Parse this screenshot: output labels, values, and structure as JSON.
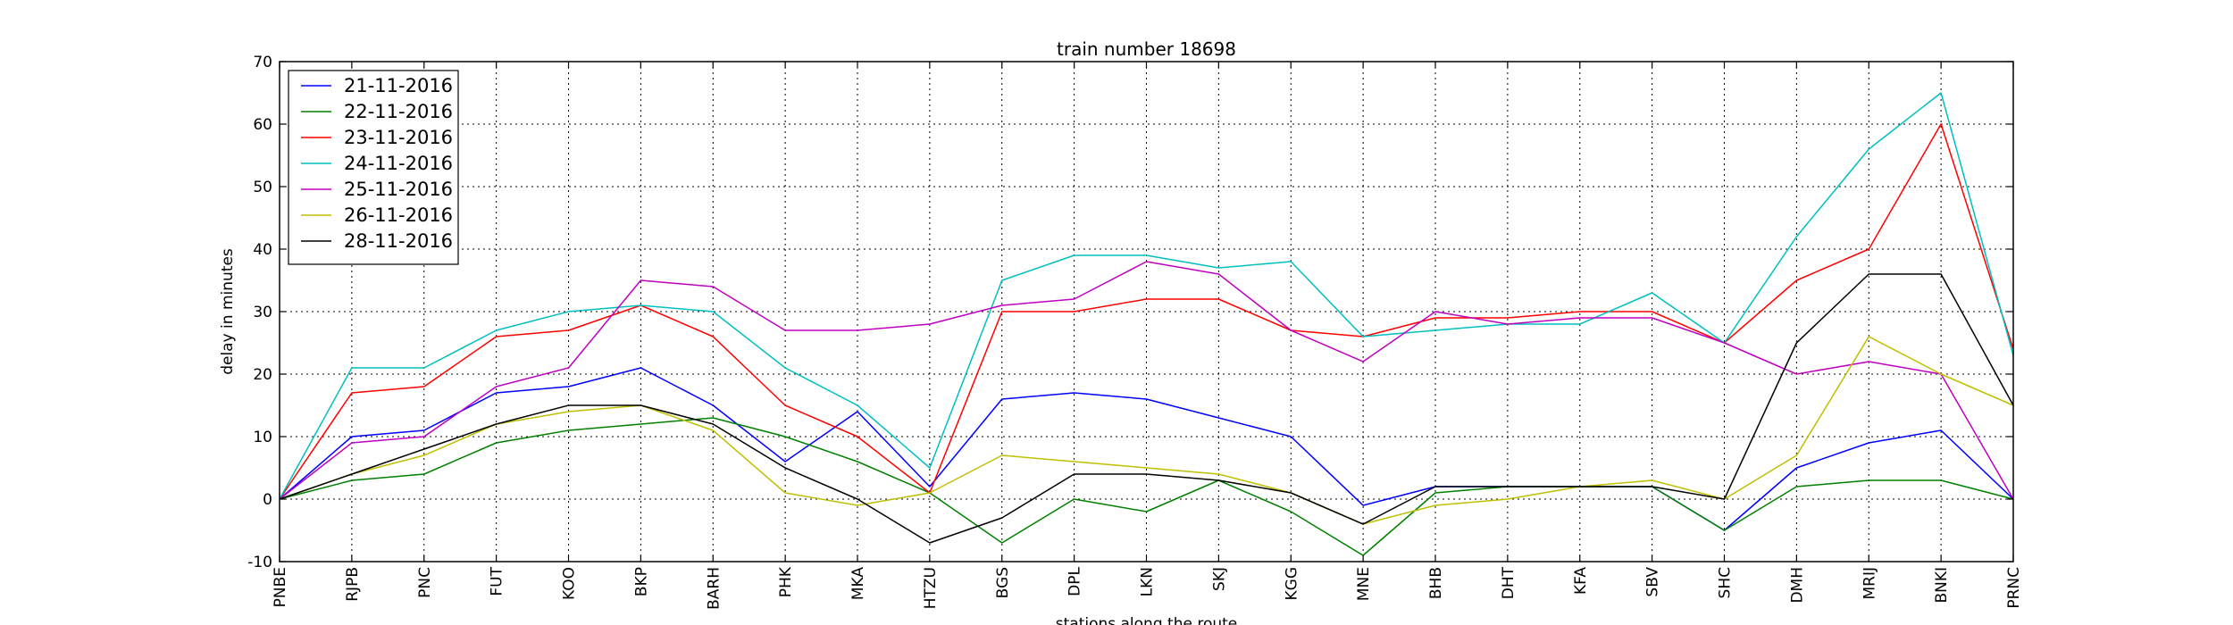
{
  "chart_data": {
    "type": "line",
    "title": "train number 18698",
    "xlabel": "stations along the route",
    "ylabel": "delay in minutes",
    "ylim": [
      -10,
      70
    ],
    "yticks": [
      -10,
      0,
      10,
      20,
      30,
      40,
      50,
      60,
      70
    ],
    "grid": true,
    "legend": "top-left",
    "categories": [
      "PNBE",
      "RJPB",
      "PNC",
      "FUT",
      "KOO",
      "BKP",
      "BARH",
      "PHK",
      "MKA",
      "HTZU",
      "BGS",
      "DPL",
      "LKN",
      "SKJ",
      "KGG",
      "MNE",
      "BHB",
      "DHT",
      "KFA",
      "SBV",
      "SHC",
      "DMH",
      "MRIJ",
      "BNKI",
      "PRNC"
    ],
    "series": [
      {
        "name": "21-11-2016",
        "color": "#0000ff",
        "values": [
          0,
          10,
          11,
          17,
          18,
          21,
          15,
          6,
          14,
          2,
          16,
          17,
          16,
          13,
          10,
          -1,
          2,
          2,
          2,
          2,
          -5,
          5,
          9,
          11,
          0
        ]
      },
      {
        "name": "22-11-2016",
        "color": "#008000",
        "values": [
          0,
          3,
          4,
          9,
          11,
          12,
          13,
          10,
          6,
          1,
          -7,
          0,
          -2,
          3,
          -2,
          -9,
          1,
          2,
          2,
          2,
          -5,
          2,
          3,
          3,
          0
        ]
      },
      {
        "name": "23-11-2016",
        "color": "#ff0000",
        "values": [
          0,
          17,
          18,
          26,
          27,
          31,
          26,
          15,
          10,
          1,
          30,
          30,
          32,
          32,
          27,
          26,
          29,
          29,
          30,
          30,
          25,
          35,
          40,
          60,
          24
        ]
      },
      {
        "name": "24-11-2016",
        "color": "#00bfbf",
        "values": [
          0,
          21,
          21,
          27,
          30,
          31,
          30,
          21,
          15,
          5,
          35,
          39,
          39,
          37,
          38,
          26,
          27,
          28,
          28,
          33,
          25,
          42,
          56,
          65,
          23
        ]
      },
      {
        "name": "25-11-2016",
        "color": "#bf00bf",
        "values": [
          0,
          9,
          10,
          18,
          21,
          35,
          34,
          27,
          27,
          28,
          31,
          32,
          38,
          36,
          27,
          22,
          30,
          28,
          29,
          29,
          25,
          20,
          22,
          20,
          0
        ]
      },
      {
        "name": "26-11-2016",
        "color": "#bfbf00",
        "values": [
          0,
          4,
          7,
          12,
          14,
          15,
          11,
          1,
          -1,
          1,
          7,
          6,
          5,
          4,
          1,
          -4,
          -1,
          0,
          2,
          3,
          0,
          7,
          26,
          20,
          15
        ]
      },
      {
        "name": "28-11-2016",
        "color": "#000000",
        "values": [
          0,
          4,
          8,
          12,
          15,
          15,
          12,
          5,
          0,
          -7,
          -3,
          4,
          4,
          3,
          1,
          -4,
          2,
          2,
          2,
          2,
          0,
          25,
          36,
          36,
          15
        ]
      }
    ]
  }
}
